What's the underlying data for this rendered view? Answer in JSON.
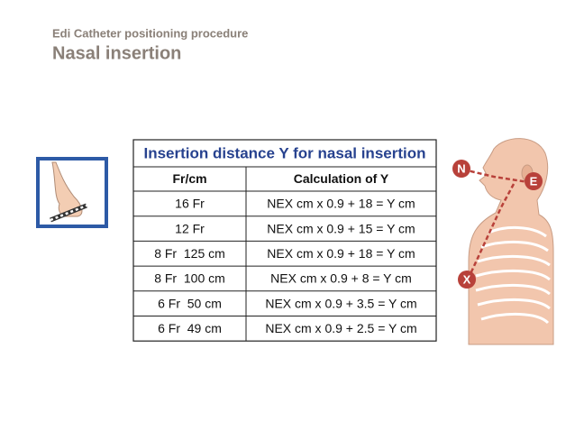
{
  "header": {
    "subtitle": "Edi Catheter positioning procedure",
    "title": "Nasal insertion"
  },
  "table": {
    "title": "Insertion distance Y for nasal insertion",
    "columns": [
      "Fr/cm",
      "Calculation of Y"
    ],
    "rows": [
      [
        "16 Fr",
        "NEX cm x 0.9 + 18 = Y cm"
      ],
      [
        "12 Fr",
        "NEX cm x 0.9 + 15 = Y cm"
      ],
      [
        "8 Fr  125 cm",
        "NEX cm x 0.9 + 18 = Y cm"
      ],
      [
        "8 Fr  100 cm",
        "NEX cm x 0.9 + 8 = Y cm"
      ],
      [
        "6 Fr  50 cm",
        "NEX cm x 0.9 + 3.5 = Y cm"
      ],
      [
        "6 Fr  49 cm",
        "NEX cm x 0.9 + 2.5 = Y cm"
      ]
    ]
  },
  "figure": {
    "labels": [
      "N",
      "E",
      "X"
    ]
  }
}
